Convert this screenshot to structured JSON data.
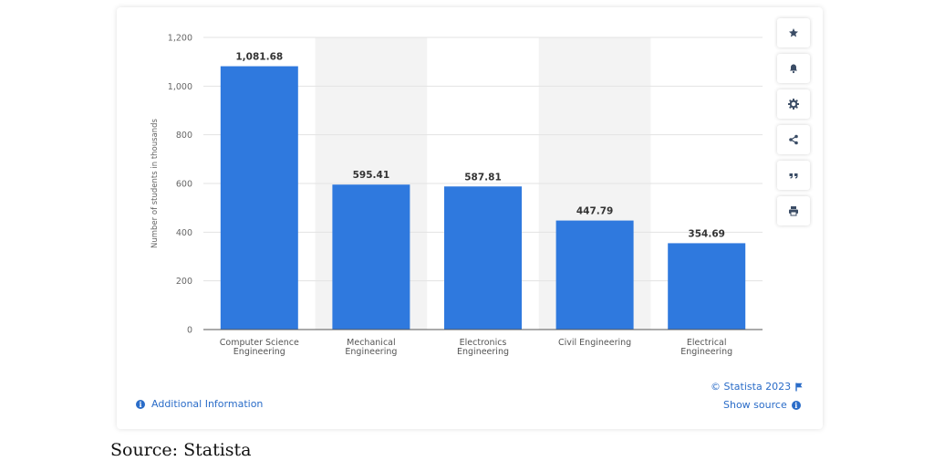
{
  "chart_data": {
    "type": "bar",
    "categories": [
      "Computer Science Engineering",
      "Mechanical Engineering",
      "Electronics Engineering",
      "Civil Engineering",
      "Electrical Engineering"
    ],
    "category_label_lines": [
      [
        "Computer Science",
        "Engineering"
      ],
      [
        "Mechanical",
        "Engineering"
      ],
      [
        "Electronics",
        "Engineering"
      ],
      [
        "Civil Engineering"
      ],
      [
        "Electrical",
        "Engineering"
      ]
    ],
    "values": [
      1081.68,
      595.41,
      587.81,
      447.79,
      354.69
    ],
    "value_labels": [
      "1,081.68",
      "595.41",
      "587.81",
      "447.79",
      "354.69"
    ],
    "ylabel": "Number of students in thousands",
    "ylim": [
      0,
      1200
    ],
    "yticks": [
      0,
      200,
      400,
      600,
      800,
      1000,
      1200
    ],
    "ytick_labels": [
      "0",
      "200",
      "400",
      "600",
      "800",
      "1,000",
      "1,200"
    ],
    "grid": true,
    "bar_color": "#2f79de",
    "band_color": "#f3f3f3"
  },
  "toolbar": {
    "buttons": [
      {
        "name": "favorite-button",
        "icon": "star-icon"
      },
      {
        "name": "notification-button",
        "icon": "bell-icon"
      },
      {
        "name": "settings-button",
        "icon": "gear-icon"
      },
      {
        "name": "share-button",
        "icon": "share-icon"
      },
      {
        "name": "cite-button",
        "icon": "quote-icon"
      },
      {
        "name": "print-button",
        "icon": "print-icon"
      }
    ]
  },
  "footer": {
    "copyright": "© Statista 2023",
    "show_source": "Show source",
    "additional_info": "Additional Information"
  },
  "caption": "Source: Statista",
  "colors": {
    "link": "#2a6cc8",
    "icon": "#3b4d66"
  }
}
